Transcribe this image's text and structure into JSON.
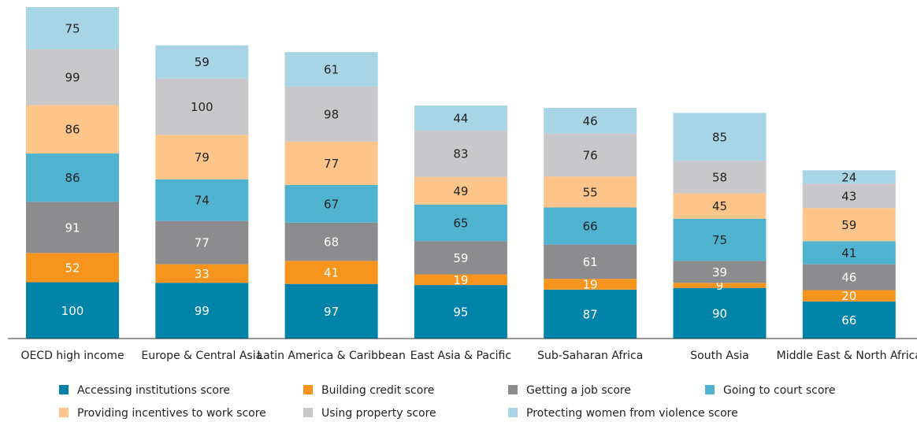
{
  "chart_data": {
    "type": "stacked_bar",
    "categories": [
      "OECD high income",
      "Europe & Central Asia",
      "Latin America & Caribbean",
      "East Asia & Pacific",
      "Sub-Saharan Africa",
      "South Asia",
      "Middle East & North Africa"
    ],
    "series": [
      {
        "name": "Accessing institutions score",
        "color": "#0083a9",
        "values": [
          100,
          99,
          97,
          95,
          87,
          90,
          66
        ]
      },
      {
        "name": "Building credit score",
        "color": "#f7941d",
        "values": [
          52,
          33,
          41,
          19,
          19,
          9,
          20
        ]
      },
      {
        "name": "Getting a job score",
        "color": "#8c8c8e",
        "values": [
          91,
          77,
          68,
          59,
          61,
          39,
          46
        ]
      },
      {
        "name": "Going to court score",
        "color": "#4fb3cf",
        "values": [
          86,
          74,
          67,
          65,
          66,
          75,
          41
        ]
      },
      {
        "name": "Providing incentives to work score",
        "color": "#fdc589",
        "values": [
          86,
          79,
          77,
          49,
          55,
          45,
          59
        ]
      },
      {
        "name": "Using property score",
        "color": "#c8c8ca",
        "values": [
          99,
          100,
          98,
          83,
          76,
          58,
          43
        ]
      },
      {
        "name": "Protecting women from violence score",
        "color": "#a8d5e5",
        "values": [
          75,
          59,
          61,
          44,
          46,
          85,
          24
        ]
      }
    ]
  }
}
